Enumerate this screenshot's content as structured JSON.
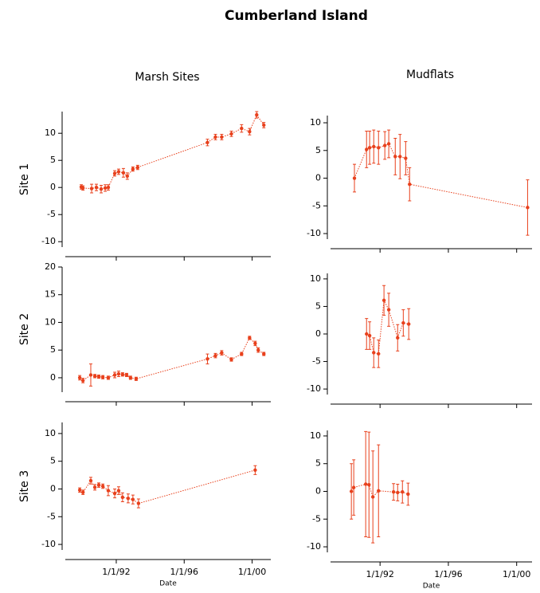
{
  "title": "Cumberland Island",
  "columns": [
    "Marsh Sites",
    "Mudflats"
  ],
  "rows": [
    "Site 1",
    "Site 2",
    "Site 3"
  ],
  "chart_data": [
    {
      "type": "line",
      "row": 0,
      "col": 0,
      "xlim": [
        1989,
        2001.1
      ],
      "ylim": [
        -11,
        14
      ],
      "yticks": [
        -10,
        -5,
        0,
        5,
        10
      ],
      "xticks": [
        1992,
        1996,
        2000
      ],
      "xtick_labels": false,
      "x": [
        1989.94,
        1990.04,
        1990.55,
        1990.83,
        1991.11,
        1991.35,
        1991.53,
        1991.91,
        1992.14,
        1992.42,
        1992.65,
        1992.98,
        1993.26,
        1997.37,
        1997.84,
        1998.21,
        1998.78,
        1999.38,
        1999.85,
        2000.27,
        2000.69
      ],
      "series": [
        {
          "color": "#e8401c",
          "values": [
            0.1,
            -0.1,
            -0.2,
            0,
            -0.3,
            -0.1,
            0,
            2.6,
            2.9,
            2.7,
            2.1,
            3.4,
            3.7,
            8.3,
            9.3,
            9.3,
            9.9,
            10.9,
            10.3,
            13.4,
            11.5
          ],
          "errors": [
            0.4,
            0.4,
            0.8,
            0.6,
            0.7,
            0.6,
            0.5,
            0.5,
            0.5,
            0.8,
            0.6,
            0.4,
            0.4,
            0.6,
            0.5,
            0.5,
            0.5,
            0.7,
            0.6,
            0.6,
            0.5
          ]
        }
      ]
    },
    {
      "type": "line",
      "row": 0,
      "col": 1,
      "xlim": [
        1989.1,
        2000.9
      ],
      "ylim": [
        -11,
        11.3
      ],
      "yticks": [
        -10,
        -5,
        0,
        5,
        10
      ],
      "xticks": [
        1992,
        1996,
        2000
      ],
      "xtick_labels": false,
      "x": [
        1990.5,
        1991.21,
        1991.39,
        1991.63,
        1991.91,
        1992.28,
        1992.51,
        1992.89,
        1993.17,
        1993.5,
        1993.73,
        2000.64
      ],
      "series": [
        {
          "color": "#e8401c",
          "values": [
            0,
            5.2,
            5.5,
            5.7,
            5.5,
            5.9,
            6.2,
            3.9,
            3.9,
            3.6,
            -1.1,
            -5.3
          ],
          "errors": [
            2.5,
            3.3,
            3,
            3,
            3,
            2.5,
            2.5,
            3.3,
            4,
            3,
            3,
            5
          ]
        }
      ]
    },
    {
      "type": "line",
      "row": 1,
      "col": 0,
      "xlim": [
        1989,
        2001.1
      ],
      "ylim": [
        -2.6,
        20
      ],
      "yticks": [
        0,
        5,
        10,
        15,
        20
      ],
      "xticks": [
        1992,
        1996,
        2000
      ],
      "xtick_labels": false,
      "x": [
        1989.85,
        1990.04,
        1990.5,
        1990.74,
        1990.97,
        1991.21,
        1991.53,
        1991.91,
        1992.14,
        1992.37,
        1992.61,
        1992.84,
        1993.17,
        1997.37,
        1997.84,
        1998.21,
        1998.78,
        1999.38,
        1999.85,
        2000.18,
        2000.36,
        2000.69
      ],
      "series": [
        {
          "color": "#e8401c",
          "values": [
            0,
            -0.5,
            0.5,
            0.3,
            0.2,
            0.1,
            0,
            0.5,
            0.7,
            0.6,
            0.5,
            0,
            -0.2,
            3.4,
            4,
            4.5,
            3.3,
            4.3,
            7.2,
            6.2,
            5,
            4.3
          ],
          "errors": [
            0.4,
            0.4,
            2,
            0.3,
            0.3,
            0.3,
            0.3,
            0.5,
            0.5,
            0.3,
            0.3,
            0.3,
            0.3,
            0.9,
            0.4,
            0.4,
            0.3,
            0.3,
            0.3,
            0.4,
            0.4,
            0.3
          ]
        }
      ]
    },
    {
      "type": "line",
      "row": 1,
      "col": 1,
      "xlim": [
        1989.1,
        2000.9
      ],
      "ylim": [
        -11,
        11
      ],
      "yticks": [
        -10,
        -5,
        0,
        5,
        10
      ],
      "xticks": [
        1992,
        1996,
        2000
      ],
      "xtick_labels": false,
      "x": [
        1991.21,
        1991.39,
        1991.63,
        1991.91,
        1992.23,
        1992.51,
        1993.03,
        1993.36,
        1993.68
      ],
      "series": [
        {
          "color": "#e8401c",
          "values": [
            0,
            -0.3,
            -3.4,
            -3.6,
            6.1,
            4.4,
            -0.7,
            2,
            1.8
          ],
          "errors": [
            2.8,
            2.5,
            2.7,
            2.5,
            2.7,
            3,
            2.4,
            2.4,
            2.8
          ]
        }
      ]
    },
    {
      "type": "line",
      "row": 2,
      "col": 0,
      "xlim": [
        1989,
        2001.1
      ],
      "ylim": [
        -11,
        12
      ],
      "yticks": [
        -10,
        -5,
        0,
        5,
        10
      ],
      "xlabel": "Date",
      "xtick_labels": true,
      "xticks": [
        {
          "value": 1992,
          "label": "1/1/92"
        },
        {
          "value": 1996,
          "label": "1/1/96"
        },
        {
          "value": 2000,
          "label": "1/1/00"
        }
      ],
      "x": [
        1989.85,
        1990.04,
        1990.5,
        1990.74,
        1990.97,
        1991.21,
        1991.53,
        1991.91,
        1992.14,
        1992.37,
        1992.7,
        1992.98,
        1993.31,
        2000.18
      ],
      "series": [
        {
          "color": "#e8401c",
          "values": [
            -0.2,
            -0.6,
            1.5,
            0.3,
            0.7,
            0.5,
            -0.3,
            -0.8,
            -0.3,
            -1.5,
            -1.7,
            -1.9,
            -2.6,
            3.4
          ],
          "errors": [
            0.4,
            0.4,
            0.6,
            0.5,
            0.4,
            0.4,
            0.9,
            0.8,
            0.7,
            0.8,
            0.8,
            0.8,
            0.8,
            0.8
          ]
        }
      ]
    },
    {
      "type": "line",
      "row": 2,
      "col": 1,
      "xlim": [
        1989.1,
        2000.9
      ],
      "ylim": [
        -11,
        11
      ],
      "yticks": [
        -10,
        -5,
        0,
        5,
        10
      ],
      "xlabel": "Date",
      "xtick_labels": true,
      "xticks": [
        {
          "value": 1992,
          "label": "1/1/92"
        },
        {
          "value": 1996,
          "label": "1/1/96"
        },
        {
          "value": 2000,
          "label": "1/1/00"
        }
      ],
      "x": [
        1990.32,
        1990.46,
        1991.16,
        1991.35,
        1991.58,
        1991.91,
        1992.79,
        1993.03,
        1993.31,
        1993.64
      ],
      "series": [
        {
          "color": "#e8401c",
          "values": [
            0,
            0.7,
            1.3,
            1.2,
            -1,
            0.1,
            -0.1,
            -0.2,
            -0.1,
            -0.5
          ],
          "errors": [
            5,
            5,
            9.5,
            9.5,
            8.3,
            8.3,
            1.5,
            1.5,
            2,
            2
          ]
        }
      ]
    }
  ]
}
